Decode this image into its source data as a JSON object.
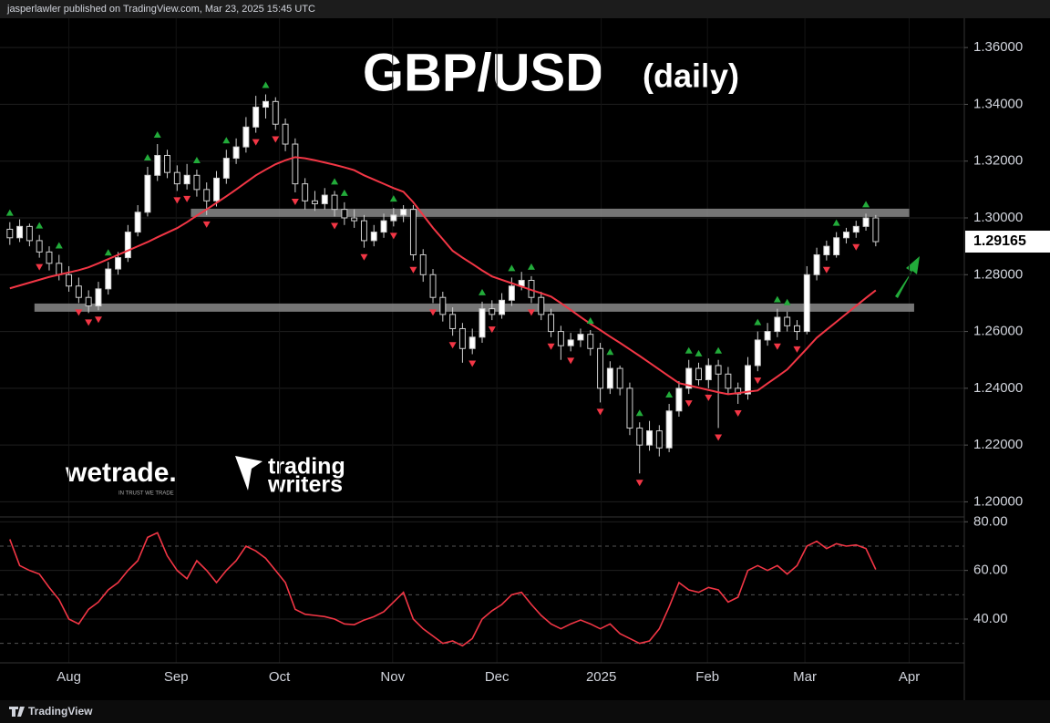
{
  "header": {
    "text": "jasperlawler published on TradingView.com, Mar 23, 2025 15:45 UTC"
  },
  "footer": {
    "text": "TradingView"
  },
  "watermarks": {
    "brand1": "wetrade.",
    "tagline1": "IN TRUST WE TRADE",
    "brand2_line1": "trading",
    "brand2_line2": "writers"
  },
  "chart_data": [
    {
      "type": "candlestick",
      "title": "GBP/USD",
      "subtitle": "(daily)",
      "up_color": "#ffffff",
      "down_color": "#000000",
      "ohlc": [
        [
          1.296,
          1.2985,
          1.2905,
          1.293
        ],
        [
          1.293,
          1.2995,
          1.2915,
          1.297
        ],
        [
          1.297,
          1.298,
          1.29,
          1.292
        ],
        [
          1.292,
          1.294,
          1.286,
          1.288
        ],
        [
          1.288,
          1.29,
          1.2815,
          1.284
        ],
        [
          1.284,
          1.287,
          1.278,
          1.28
        ],
        [
          1.28,
          1.283,
          1.274,
          1.276
        ],
        [
          1.276,
          1.279,
          1.27,
          1.272
        ],
        [
          1.272,
          1.2745,
          1.2665,
          1.269
        ],
        [
          1.269,
          1.2775,
          1.2675,
          1.275
        ],
        [
          1.275,
          1.2845,
          1.273,
          1.282
        ],
        [
          1.282,
          1.288,
          1.28,
          1.286
        ],
        [
          1.286,
          1.2975,
          1.2845,
          1.295
        ],
        [
          1.295,
          1.3045,
          1.2935,
          1.302
        ],
        [
          1.302,
          1.318,
          1.3005,
          1.315
        ],
        [
          1.315,
          1.326,
          1.313,
          1.322
        ],
        [
          1.322,
          1.324,
          1.314,
          1.316
        ],
        [
          1.316,
          1.3185,
          1.3095,
          1.312
        ],
        [
          1.312,
          1.319,
          1.31,
          1.315
        ],
        [
          1.315,
          1.317,
          1.3075,
          1.31
        ],
        [
          1.31,
          1.3125,
          1.301,
          1.306
        ],
        [
          1.306,
          1.3165,
          1.304,
          1.314
        ],
        [
          1.314,
          1.324,
          1.312,
          1.321
        ],
        [
          1.321,
          1.328,
          1.319,
          1.325
        ],
        [
          1.325,
          1.3355,
          1.323,
          1.332
        ],
        [
          1.332,
          1.343,
          1.33,
          1.339
        ],
        [
          1.339,
          1.3435,
          1.335,
          1.341
        ],
        [
          1.341,
          1.3425,
          1.331,
          1.333
        ],
        [
          1.333,
          1.335,
          1.3235,
          1.326
        ],
        [
          1.326,
          1.328,
          1.309,
          1.312
        ],
        [
          1.312,
          1.314,
          1.303,
          1.306
        ],
        [
          1.306,
          1.3095,
          1.3025,
          1.305
        ],
        [
          1.305,
          1.3105,
          1.303,
          1.308
        ],
        [
          1.308,
          1.3095,
          1.3005,
          1.303
        ],
        [
          1.303,
          1.3055,
          1.2975,
          1.3
        ],
        [
          1.3,
          1.303,
          1.2965,
          1.299
        ],
        [
          1.299,
          1.301,
          1.2895,
          1.292
        ],
        [
          1.292,
          1.2975,
          1.29,
          1.295
        ],
        [
          1.295,
          1.3015,
          1.293,
          1.299
        ],
        [
          1.299,
          1.3035,
          1.297,
          1.301
        ],
        [
          1.301,
          1.3045,
          1.2985,
          1.303
        ],
        [
          1.303,
          1.3045,
          1.285,
          1.287
        ],
        [
          1.287,
          1.289,
          1.2775,
          1.28
        ],
        [
          1.28,
          1.282,
          1.27,
          1.272
        ],
        [
          1.272,
          1.274,
          1.2635,
          1.266
        ],
        [
          1.266,
          1.2685,
          1.2585,
          1.261
        ],
        [
          1.261,
          1.263,
          1.249,
          1.254
        ],
        [
          1.254,
          1.261,
          1.252,
          1.258
        ],
        [
          1.258,
          1.2705,
          1.256,
          1.268
        ],
        [
          1.268,
          1.271,
          1.264,
          1.266
        ],
        [
          1.266,
          1.2735,
          1.2645,
          1.271
        ],
        [
          1.271,
          1.279,
          1.269,
          1.276
        ],
        [
          1.276,
          1.281,
          1.2745,
          1.278
        ],
        [
          1.278,
          1.2795,
          1.27,
          1.272
        ],
        [
          1.272,
          1.274,
          1.264,
          1.266
        ],
        [
          1.266,
          1.268,
          1.258,
          1.26
        ],
        [
          1.26,
          1.262,
          1.25,
          1.255
        ],
        [
          1.255,
          1.2595,
          1.253,
          1.257
        ],
        [
          1.257,
          1.261,
          1.2545,
          1.259
        ],
        [
          1.259,
          1.2605,
          1.2515,
          1.254
        ],
        [
          1.254,
          1.256,
          1.235,
          1.24
        ],
        [
          1.24,
          1.2495,
          1.238,
          1.247
        ],
        [
          1.247,
          1.248,
          1.2375,
          1.24
        ],
        [
          1.24,
          1.242,
          1.2235,
          1.226
        ],
        [
          1.226,
          1.228,
          1.21,
          1.22
        ],
        [
          1.22,
          1.2285,
          1.218,
          1.225
        ],
        [
          1.225,
          1.227,
          1.216,
          1.219
        ],
        [
          1.219,
          1.2345,
          1.2175,
          1.232
        ],
        [
          1.232,
          1.2425,
          1.23,
          1.24
        ],
        [
          1.24,
          1.25,
          1.238,
          1.247
        ],
        [
          1.247,
          1.249,
          1.241,
          1.243
        ],
        [
          1.243,
          1.2505,
          1.24,
          1.248
        ],
        [
          1.248,
          1.25,
          1.226,
          1.245
        ],
        [
          1.245,
          1.2475,
          1.238,
          1.24
        ],
        [
          1.24,
          1.242,
          1.2345,
          1.238
        ],
        [
          1.238,
          1.251,
          1.236,
          1.248
        ],
        [
          1.248,
          1.26,
          1.246,
          1.257
        ],
        [
          1.257,
          1.263,
          1.255,
          1.26
        ],
        [
          1.26,
          1.268,
          1.258,
          1.265
        ],
        [
          1.265,
          1.267,
          1.26,
          1.262
        ],
        [
          1.262,
          1.264,
          1.257,
          1.26
        ],
        [
          1.26,
          1.283,
          1.259,
          1.28
        ],
        [
          1.28,
          1.2895,
          1.278,
          1.287
        ],
        [
          1.287,
          1.292,
          1.285,
          1.29
        ],
        [
          1.287,
          1.295,
          1.286,
          1.293
        ],
        [
          1.293,
          1.2965,
          1.291,
          1.295
        ],
        [
          1.295,
          1.299,
          1.293,
          1.297
        ],
        [
          1.297,
          1.3015,
          1.2955,
          1.3
        ],
        [
          1.3,
          1.301,
          1.29,
          1.29165
        ]
      ],
      "moving_average": {
        "color": "#f23645",
        "values": [
          1.2752,
          1.2762,
          1.2772,
          1.2782,
          1.2792,
          1.28,
          1.2808,
          1.2816,
          1.2826,
          1.284,
          1.2855,
          1.287,
          1.2885,
          1.29,
          1.2915,
          1.2932,
          1.2948,
          1.2964,
          1.2985,
          1.3008,
          1.303,
          1.3053,
          1.3076,
          1.31,
          1.3125,
          1.315,
          1.317,
          1.3189,
          1.3203,
          1.3214,
          1.321,
          1.3203,
          1.3195,
          1.3187,
          1.3178,
          1.3168,
          1.315,
          1.3135,
          1.312,
          1.3105,
          1.3092,
          1.3055,
          1.301,
          1.2965,
          1.2925,
          1.2884,
          1.286,
          1.2838,
          1.2815,
          1.2794,
          1.2782,
          1.277,
          1.2758,
          1.2746,
          1.2735,
          1.2723,
          1.27,
          1.2676,
          1.2651,
          1.2627,
          1.2605,
          1.2582,
          1.256,
          1.2537,
          1.2514,
          1.249,
          1.2466,
          1.2442,
          1.2418,
          1.241,
          1.2402,
          1.2394,
          1.2386,
          1.2379,
          1.2383,
          1.2388,
          1.2392,
          1.2417,
          1.2441,
          1.2466,
          1.2503,
          1.254,
          1.2578,
          1.2606,
          1.2634,
          1.2662,
          1.269,
          1.2718,
          1.2745
        ]
      },
      "pivot_high_markers": {
        "color": "#22ab3a",
        "indices": [
          0,
          3,
          5,
          10,
          14,
          15,
          19,
          22,
          26,
          33,
          34,
          39,
          48,
          51,
          53,
          59,
          61,
          64,
          67,
          69,
          70,
          72,
          76,
          78,
          79,
          84,
          87
        ]
      },
      "pivot_low_markers": {
        "color": "#f23645",
        "indices": [
          3,
          7,
          8,
          9,
          17,
          18,
          20,
          25,
          27,
          29,
          33,
          36,
          39,
          41,
          43,
          45,
          47,
          49,
          53,
          55,
          57,
          60,
          64,
          69,
          71,
          72,
          74,
          76,
          78,
          80,
          83,
          86
        ]
      },
      "levels": [
        {
          "value": 1.3018,
          "start": 18.4,
          "end": 91.4
        },
        {
          "value": 1.2684,
          "start": 2.5,
          "end": 91.9
        }
      ],
      "level_color": "#8a8a8a",
      "xlim": [
        -1,
        97
      ],
      "xticks": [
        {
          "value": 6.0,
          "label": "Aug"
        },
        {
          "value": 16.9,
          "label": "Sep"
        },
        {
          "value": 27.4,
          "label": "Oct"
        },
        {
          "value": 38.9,
          "label": "Nov"
        },
        {
          "value": 49.5,
          "label": "Dec"
        },
        {
          "value": 60.1,
          "label": "2025"
        },
        {
          "value": 70.9,
          "label": "Feb"
        },
        {
          "value": 80.8,
          "label": "Mar"
        },
        {
          "value": 91.4,
          "label": "Apr"
        }
      ],
      "ylim": [
        1.195,
        1.37
      ],
      "yticks": [
        {
          "value": 1.2,
          "label": "1.20000"
        },
        {
          "value": 1.22,
          "label": "1.22000"
        },
        {
          "value": 1.24,
          "label": "1.24000"
        },
        {
          "value": 1.26,
          "label": "1.26000"
        },
        {
          "value": 1.28,
          "label": "1.28000"
        },
        {
          "value": 1.3,
          "label": "1.30000"
        },
        {
          "value": 1.32,
          "label": "1.32000"
        },
        {
          "value": 1.34,
          "label": "1.34000"
        },
        {
          "value": 1.36,
          "label": "1.36000"
        }
      ],
      "grid": true
    },
    {
      "type": "line",
      "color": "#f23645",
      "values": [
        72.8,
        62,
        60,
        58.5,
        53,
        48,
        40,
        38,
        44,
        47,
        52,
        55,
        60,
        64,
        73.6,
        75.5,
        66,
        60,
        56.6,
        64,
        60,
        55,
        60,
        64,
        70,
        68,
        65,
        60,
        55,
        44,
        42,
        41.5,
        41,
        40,
        38,
        37.7,
        39.6,
        41,
        43,
        47,
        51,
        40,
        36,
        33,
        30,
        31,
        29,
        32,
        40,
        43.4,
        46,
        50,
        51,
        46,
        41.5,
        38,
        36,
        38,
        39.6,
        38,
        36,
        38,
        34,
        32,
        30,
        31,
        36,
        45,
        55,
        52,
        51,
        53,
        52,
        47,
        49,
        60,
        62,
        60,
        62,
        58.5,
        62,
        70,
        72,
        69,
        71,
        70,
        70.5,
        69,
        60.4
      ],
      "bands": [
        30,
        50,
        70
      ],
      "xlim": [
        -1,
        97
      ],
      "ylim": [
        22,
        82
      ],
      "yticks": [
        {
          "value": 40,
          "label": "40.00"
        },
        {
          "value": 60,
          "label": "60.00"
        },
        {
          "value": 80,
          "label": "80.00"
        }
      ],
      "grid": true
    }
  ]
}
